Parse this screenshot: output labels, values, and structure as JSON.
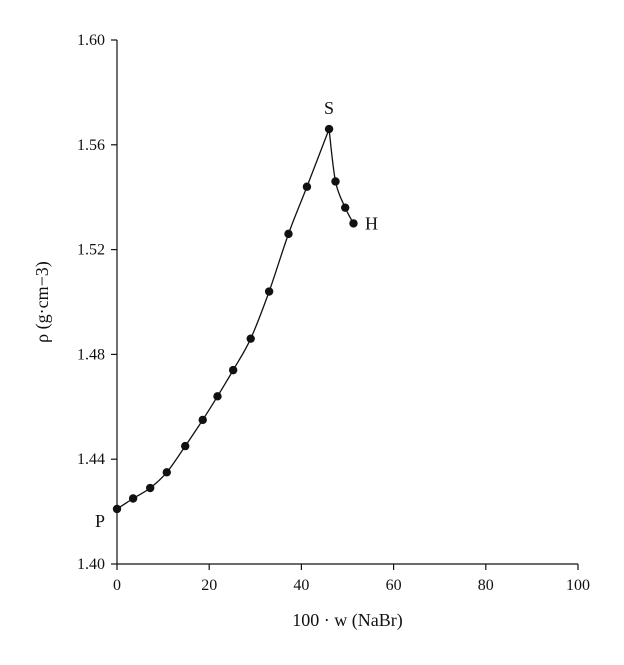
{
  "chart_data": {
    "type": "scatter",
    "title": "",
    "xlabel": "100 · w (NaBr)",
    "ylabel": "ρ (g·cm−3)",
    "xlim": [
      0,
      100
    ],
    "ylim": [
      1.4,
      1.6
    ],
    "xticks": [
      "0",
      "20",
      "40",
      "60",
      "80",
      "100"
    ],
    "yticks": [
      "1.40",
      "1.44",
      "1.48",
      "1.52",
      "1.56",
      "1.60"
    ],
    "grid": false,
    "legend": "none",
    "series": [
      {
        "points": [
          [
            0.0,
            1.421
          ],
          [
            3.5,
            1.425
          ],
          [
            7.2,
            1.429
          ],
          [
            10.8,
            1.435
          ],
          [
            14.8,
            1.445
          ],
          [
            18.6,
            1.455
          ],
          [
            21.8,
            1.464
          ],
          [
            25.2,
            1.474
          ],
          [
            29.0,
            1.486
          ],
          [
            33.0,
            1.504
          ],
          [
            37.2,
            1.526
          ],
          [
            41.2,
            1.544
          ],
          [
            46.0,
            1.566
          ],
          [
            47.4,
            1.546
          ],
          [
            49.5,
            1.536
          ],
          [
            51.3,
            1.53
          ]
        ]
      }
    ],
    "annotations": [
      {
        "text": "P",
        "x": 0.0,
        "y": 1.421
      },
      {
        "text": "S",
        "x": 46.0,
        "y": 1.566
      },
      {
        "text": "H",
        "x": 51.3,
        "y": 1.53
      }
    ],
    "colors": {
      "line": "#111111",
      "marker": "#111111"
    }
  }
}
